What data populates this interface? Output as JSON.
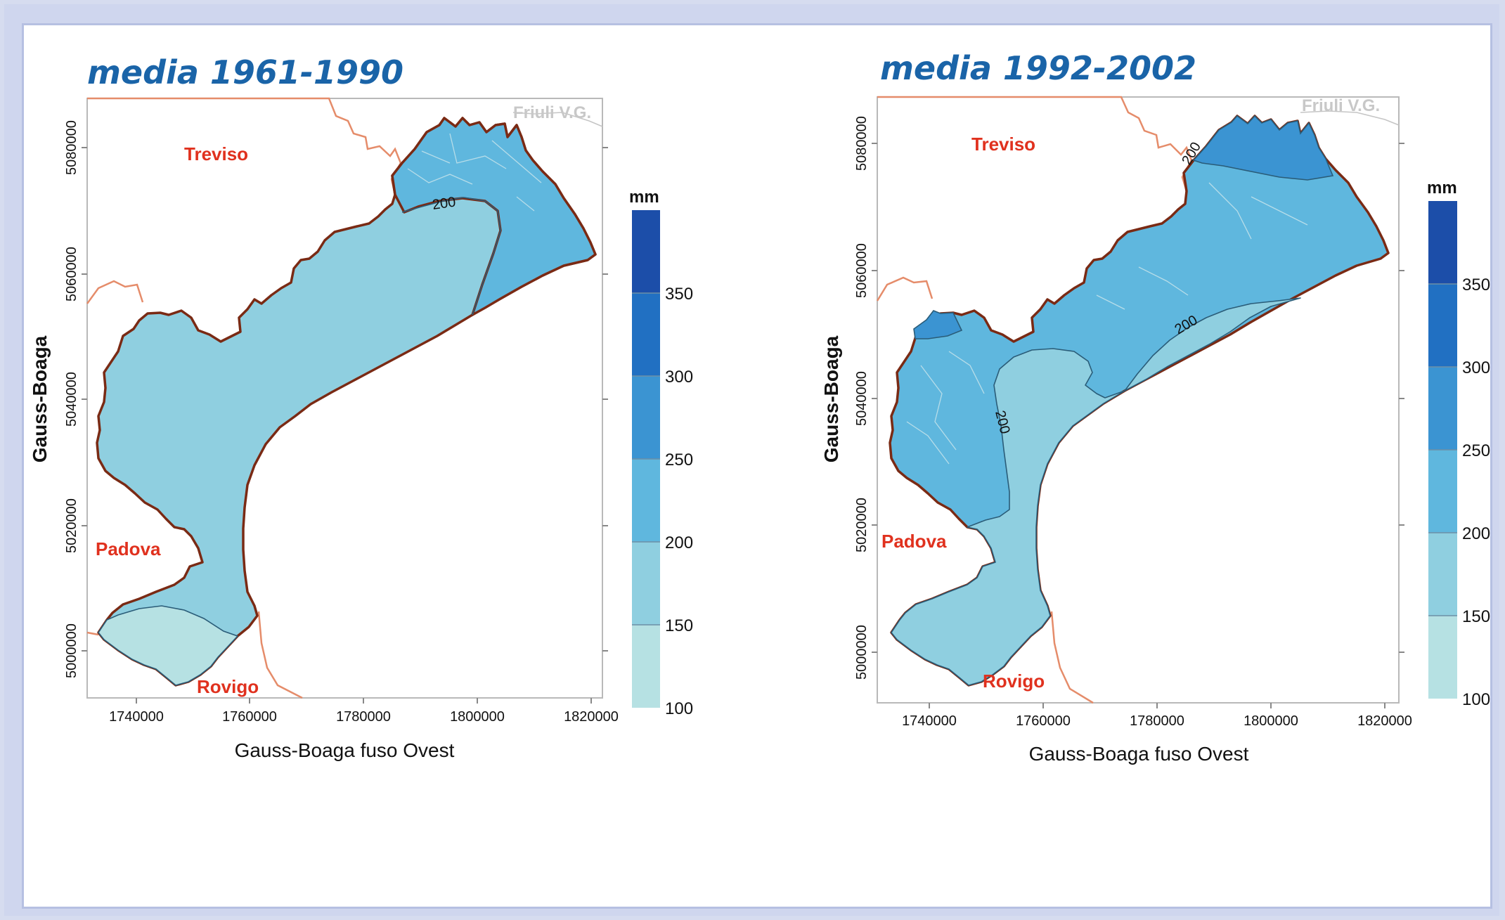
{
  "maps": [
    {
      "id": "map-1961-1990",
      "title": "media 1961-1990",
      "xlabel": "Gauss-Boaga fuso Ovest",
      "ylabel": "Gauss-Boaga",
      "x_ticks": [
        "1740000",
        "1760000",
        "1780000",
        "1800000",
        "1820000"
      ],
      "y_ticks": [
        "5080000",
        "5060000",
        "5040000",
        "5020000",
        "5000000"
      ],
      "places": {
        "treviso": "Treviso",
        "padova": "Padova",
        "rovigo": "Rovigo",
        "friuli": "Friuli V.G."
      },
      "contour_labels": [
        "200"
      ],
      "legend": {
        "unit": "mm",
        "ticks": [
          "350",
          "300",
          "250",
          "200",
          "150",
          "100"
        ]
      }
    },
    {
      "id": "map-1992-2002",
      "title": "media 1992-2002",
      "xlabel": "Gauss-Boaga fuso Ovest",
      "ylabel": "Gauss-Boaga",
      "x_ticks": [
        "1740000",
        "1760000",
        "1780000",
        "1800000",
        "1820000"
      ],
      "y_ticks": [
        "5080000",
        "5060000",
        "5040000",
        "5020000",
        "5000000"
      ],
      "places": {
        "treviso": "Treviso",
        "padova": "Padova",
        "rovigo": "Rovigo",
        "friuli": "Friuli V.G."
      },
      "contour_labels": [
        "200",
        "200",
        "200"
      ],
      "legend": {
        "unit": "mm",
        "ticks": [
          "350",
          "300",
          "250",
          "200",
          "150",
          "100"
        ]
      }
    }
  ],
  "colors": {
    "band_100_150": "#b6e1e3",
    "band_150_200": "#8fcfe0",
    "band_200_250": "#5fb7de",
    "band_250_300": "#3b94d2",
    "band_300_350": "#2170c2",
    "band_350_400": "#1c4ea9",
    "coast": "#7a2a14",
    "border": "#e58c6a",
    "title": "#1a64a8",
    "city": "#e0311e"
  }
}
